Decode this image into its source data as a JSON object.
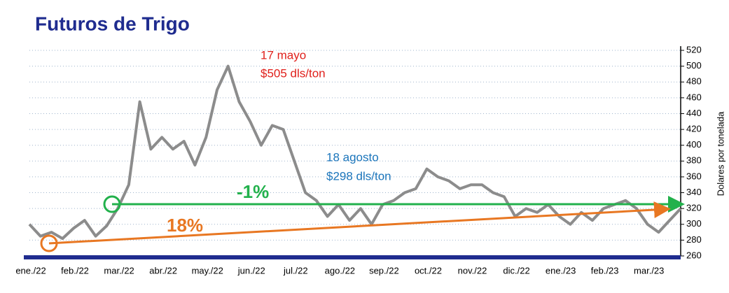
{
  "chart_data": {
    "type": "line",
    "title": "Futuros de Trigo",
    "y_axis_label": "Dolares por tonelada",
    "categories": [
      "ene./22",
      null,
      null,
      null,
      "feb./22",
      null,
      null,
      null,
      "mar./22",
      null,
      null,
      null,
      "abr./22",
      null,
      null,
      null,
      "may./22",
      null,
      null,
      null,
      "jun./22",
      null,
      null,
      null,
      "jul./22",
      null,
      null,
      null,
      "ago./22",
      null,
      null,
      null,
      "sep./22",
      null,
      null,
      null,
      "oct./22",
      null,
      null,
      null,
      "nov./22",
      null,
      null,
      null,
      "dic./22",
      null,
      null,
      null,
      "ene./23",
      null,
      null,
      null,
      "feb./23",
      null,
      null,
      null,
      "mar./23",
      null,
      null,
      null
    ],
    "series": [
      {
        "name": "Futuros de Trigo",
        "color": "#8c8c8c",
        "values": [
          300,
          285,
          290,
          282,
          295,
          305,
          285,
          298,
          320,
          350,
          455,
          395,
          410,
          395,
          405,
          375,
          410,
          470,
          500,
          455,
          430,
          400,
          425,
          420,
          380,
          340,
          330,
          310,
          325,
          305,
          320,
          300,
          325,
          330,
          340,
          345,
          370,
          360,
          355,
          345,
          350,
          350,
          340,
          335,
          310,
          320,
          315,
          325,
          310,
          300,
          315,
          305,
          320,
          325,
          330,
          320,
          300,
          290,
          305,
          320
        ]
      }
    ],
    "ylim": [
      260,
      520
    ],
    "yticks": [
      260,
      280,
      300,
      320,
      340,
      360,
      380,
      400,
      420,
      440,
      460,
      480,
      500,
      520
    ],
    "grid": true,
    "annotations": {
      "peak_date": "17 mayo",
      "peak_price": "$505 dls/ton",
      "aug_date": "18 agosto",
      "aug_price": "$298 dls/ton",
      "change_short": "-1%",
      "change_long": "18%"
    }
  }
}
